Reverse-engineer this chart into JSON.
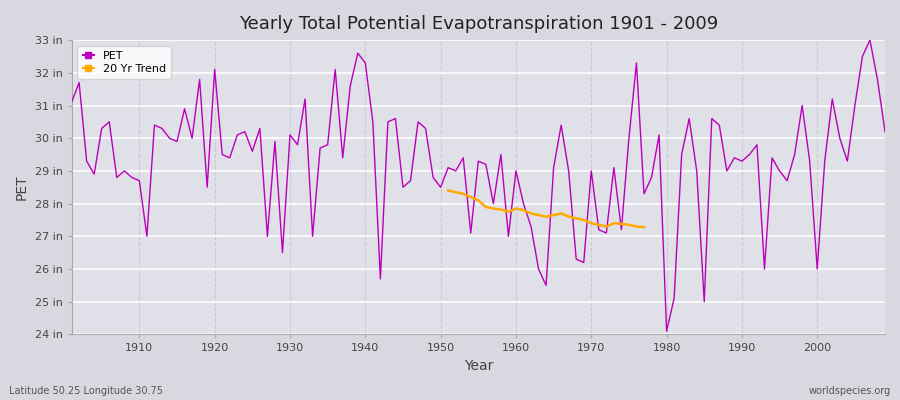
{
  "title": "Yearly Total Potential Evapotranspiration 1901 - 2009",
  "xlabel": "Year",
  "ylabel": "PET",
  "footnote_left": "Latitude 50.25 Longitude 30.75",
  "footnote_right": "worldspecies.org",
  "fig_bg_color": "#d8d8e0",
  "plot_bg_color": "#e0e0e8",
  "grid_color_h": "#ffffff",
  "grid_color_v": "#c8c8d4",
  "pet_color": "#bb00bb",
  "trend_color": "#ffaa00",
  "ylim_min": 24,
  "ylim_max": 33,
  "ytick_values": [
    24,
    25,
    26,
    27,
    28,
    29,
    30,
    31,
    32,
    33
  ],
  "ytick_labels": [
    "24 in",
    "25 in",
    "26 in",
    "27 in",
    "28 in",
    "29 in",
    "30 in",
    "31 in",
    "32 in",
    "33 in"
  ],
  "xlim_min": 1901,
  "xlim_max": 2009,
  "xtick_values": [
    1910,
    1920,
    1930,
    1940,
    1950,
    1960,
    1970,
    1980,
    1990,
    2000
  ],
  "years": [
    1901,
    1902,
    1903,
    1904,
    1905,
    1906,
    1907,
    1908,
    1909,
    1910,
    1911,
    1912,
    1913,
    1914,
    1915,
    1916,
    1917,
    1918,
    1919,
    1920,
    1921,
    1922,
    1923,
    1924,
    1925,
    1926,
    1927,
    1928,
    1929,
    1930,
    1931,
    1932,
    1933,
    1934,
    1935,
    1936,
    1937,
    1938,
    1939,
    1940,
    1941,
    1942,
    1943,
    1944,
    1945,
    1946,
    1947,
    1948,
    1949,
    1950,
    1951,
    1952,
    1953,
    1954,
    1955,
    1956,
    1957,
    1958,
    1959,
    1960,
    1961,
    1962,
    1963,
    1964,
    1965,
    1966,
    1967,
    1968,
    1969,
    1970,
    1971,
    1972,
    1973,
    1974,
    1975,
    1976,
    1977,
    1978,
    1979,
    1980,
    1981,
    1982,
    1983,
    1984,
    1985,
    1986,
    1987,
    1988,
    1989,
    1990,
    1991,
    1992,
    1993,
    1994,
    1995,
    1996,
    1997,
    1998,
    1999,
    2000,
    2001,
    2002,
    2003,
    2004,
    2005,
    2006,
    2007,
    2008,
    2009
  ],
  "pet_values": [
    31.1,
    31.7,
    29.3,
    28.9,
    30.3,
    30.5,
    28.8,
    29.0,
    28.8,
    28.7,
    27.0,
    30.4,
    30.3,
    30.0,
    29.9,
    30.9,
    30.0,
    31.8,
    28.5,
    32.1,
    29.5,
    29.4,
    30.1,
    30.2,
    29.6,
    30.3,
    27.0,
    29.9,
    26.5,
    30.1,
    29.8,
    31.2,
    27.0,
    29.7,
    29.8,
    32.1,
    29.4,
    31.6,
    32.6,
    32.3,
    30.5,
    25.7,
    30.5,
    30.6,
    28.5,
    28.7,
    30.5,
    30.3,
    28.8,
    28.5,
    29.1,
    29.0,
    29.4,
    27.1,
    29.3,
    29.2,
    28.0,
    29.5,
    27.0,
    29.0,
    28.0,
    27.3,
    26.0,
    25.5,
    29.1,
    30.4,
    29.0,
    26.3,
    26.2,
    29.0,
    27.2,
    27.1,
    29.1,
    27.2,
    30.0,
    32.3,
    28.3,
    28.8,
    30.1,
    24.1,
    25.1,
    29.5,
    30.6,
    29.0,
    25.0,
    30.6,
    30.4,
    29.0,
    29.4,
    29.3,
    29.5,
    29.8,
    26.0,
    29.4,
    29.0,
    28.7,
    29.5,
    31.0,
    29.3,
    26.0,
    29.3,
    31.2,
    30.0,
    29.3,
    31.0,
    32.5,
    33.0,
    31.8,
    30.2
  ],
  "trend_years": [
    1951,
    1952,
    1953,
    1954,
    1955,
    1956,
    1957,
    1958,
    1959,
    1960,
    1961,
    1962,
    1963,
    1964,
    1965,
    1966,
    1967,
    1968,
    1969,
    1970,
    1971,
    1972,
    1973,
    1974,
    1975,
    1976,
    1977
  ],
  "trend_values": [
    28.4,
    28.35,
    28.3,
    28.2,
    28.1,
    27.9,
    27.85,
    27.82,
    27.75,
    27.85,
    27.8,
    27.7,
    27.65,
    27.6,
    27.65,
    27.7,
    27.6,
    27.55,
    27.5,
    27.4,
    27.35,
    27.3,
    27.4,
    27.38,
    27.35,
    27.3,
    27.28
  ]
}
